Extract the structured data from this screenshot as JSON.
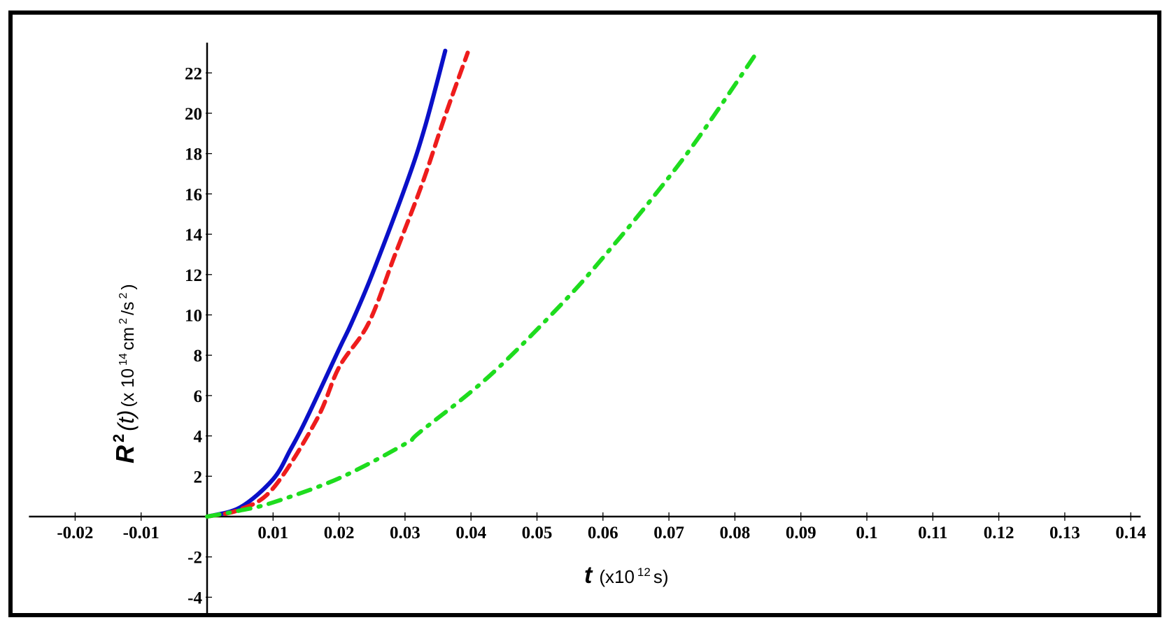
{
  "chart_data": {
    "type": "line",
    "title": "",
    "xlabel": {
      "symbol": "t",
      "unit_prefix": "(x10",
      "unit_exp": "12",
      "unit_suffix": " s)"
    },
    "ylabel": {
      "symbol": "R",
      "symbol_exp": "2",
      "symbol_arg": "(t)",
      "unit_prefix": " (x 10",
      "unit_exp": "14",
      "unit_mid": " cm",
      "unit_mid_exp": "2",
      "unit_mid2": "/s",
      "unit_mid2_exp": "2",
      "unit_suffix": ")"
    },
    "xlim": [
      -0.027,
      0.1415
    ],
    "ylim": [
      -4.8,
      23.5
    ],
    "x_ticks": [
      -0.02,
      -0.01,
      0.01,
      0.02,
      0.03,
      0.04,
      0.05,
      0.06,
      0.07,
      0.08,
      0.09,
      0.1,
      0.11,
      0.12,
      0.13,
      0.14
    ],
    "x_tick_labels": [
      "-0.02",
      "-0.01",
      "0.01",
      "0.02",
      "0.03",
      "0.04",
      "0.05",
      "0.06",
      "0.07",
      "0.08",
      "0.09",
      "0.1",
      "0.11",
      "0.12",
      "0.13",
      "0.14"
    ],
    "y_ticks": [
      -4,
      -2,
      2,
      4,
      6,
      8,
      10,
      12,
      14,
      16,
      18,
      20,
      22
    ],
    "y_tick_labels": [
      "-4",
      "-2",
      "2",
      "4",
      "6",
      "8",
      "10",
      "12",
      "14",
      "16",
      "18",
      "20",
      "22"
    ],
    "grid": false,
    "legend": null,
    "series": [
      {
        "name": "blue-solid",
        "color": "#0a10c8",
        "style": "solid",
        "x": [
          0,
          0.005,
          0.01,
          0.0126,
          0.015,
          0.02,
          0.0219,
          0.025,
          0.0302,
          0.033,
          0.0361
        ],
        "y": [
          0,
          0.45,
          1.85,
          3.3,
          4.8,
          8.3,
          9.6,
          12.0,
          16.5,
          19.3,
          23.1
        ]
      },
      {
        "name": "red-dashed",
        "color": "#ee1c1c",
        "style": "dashed",
        "x": [
          0,
          0.005,
          0.01,
          0.0166,
          0.02,
          0.0245,
          0.0285,
          0.0326,
          0.036,
          0.0395
        ],
        "y": [
          0,
          0.35,
          1.4,
          4.8,
          7.4,
          9.6,
          13.0,
          16.5,
          19.8,
          23.0
        ]
      },
      {
        "name": "green-dashdot",
        "color": "#1edc1e",
        "style": "dashdot",
        "x": [
          0,
          0.005,
          0.01,
          0.02,
          0.03,
          0.0323,
          0.0429,
          0.0542,
          0.0612,
          0.068,
          0.0743,
          0.0833
        ],
        "y": [
          0,
          0.3,
          0.7,
          1.9,
          3.6,
          4.2,
          7.0,
          10.7,
          13.3,
          16.0,
          18.7,
          23.0
        ]
      }
    ]
  }
}
